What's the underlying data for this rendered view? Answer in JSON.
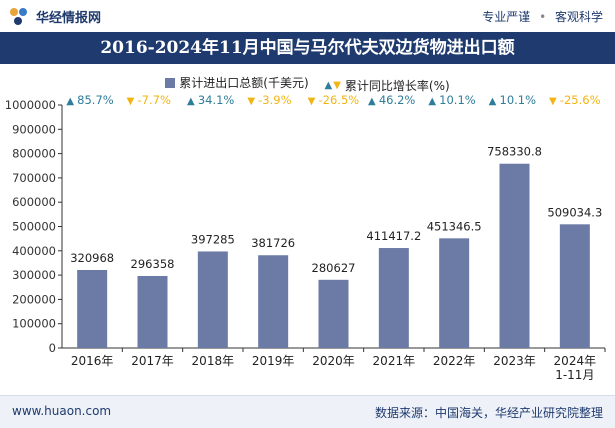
{
  "header": {
    "brand": "华经情报网",
    "tag1": "专业严谨",
    "tag2": "客观科学"
  },
  "title": "2016-2024年11月中国与马尔代夫双边货物进出口额",
  "legend": {
    "bar_label": "累计进出口总额(千美元)",
    "growth_label": "累计同比增长率(%)"
  },
  "footer": {
    "site": "www.huaon.com",
    "source": "数据来源：中国海关，华经产业研究院整理"
  },
  "colors": {
    "bar": "#6b7ba5",
    "up": "#2e7d9a",
    "down": "#f2b50f",
    "header": "#1e3a6e"
  },
  "chart_data": {
    "type": "bar",
    "categories": [
      "2016年",
      "2017年",
      "2018年",
      "2019年",
      "2020年",
      "2021年",
      "2022年",
      "2023年",
      "2024年\n1-11月"
    ],
    "series": [
      {
        "name": "累计进出口总额(千美元)",
        "values": [
          320968,
          296358,
          397285,
          381726,
          280627,
          411417.2,
          451346.5,
          758330.8,
          509034.3
        ],
        "value_labels": [
          "320968",
          "296358",
          "397285",
          "381726",
          "280627",
          "411417.2",
          "451346.5",
          "758330.8",
          "509034.3"
        ]
      }
    ],
    "growth": {
      "name": "累计同比增长率(%)",
      "values": [
        85.7,
        -7.7,
        34.1,
        -3.9,
        -26.5,
        46.2,
        10.1,
        10.1,
        -25.6
      ],
      "labels": [
        "85.7%",
        "-7.7%",
        "34.1%",
        "-3.9%",
        "-26.5%",
        "46.2%",
        "10.1%",
        "10.1%",
        "-25.6%"
      ]
    },
    "ylim": [
      0,
      1000000
    ],
    "yticks": [
      0,
      100000,
      200000,
      300000,
      400000,
      500000,
      600000,
      700000,
      800000,
      900000,
      1000000
    ],
    "ytick_labels": [
      "0",
      "100000",
      "200000",
      "300000",
      "400000",
      "500000",
      "600000",
      "700000",
      "800000",
      "900000",
      "1000000"
    ],
    "grid": false,
    "legend_position": "top"
  }
}
